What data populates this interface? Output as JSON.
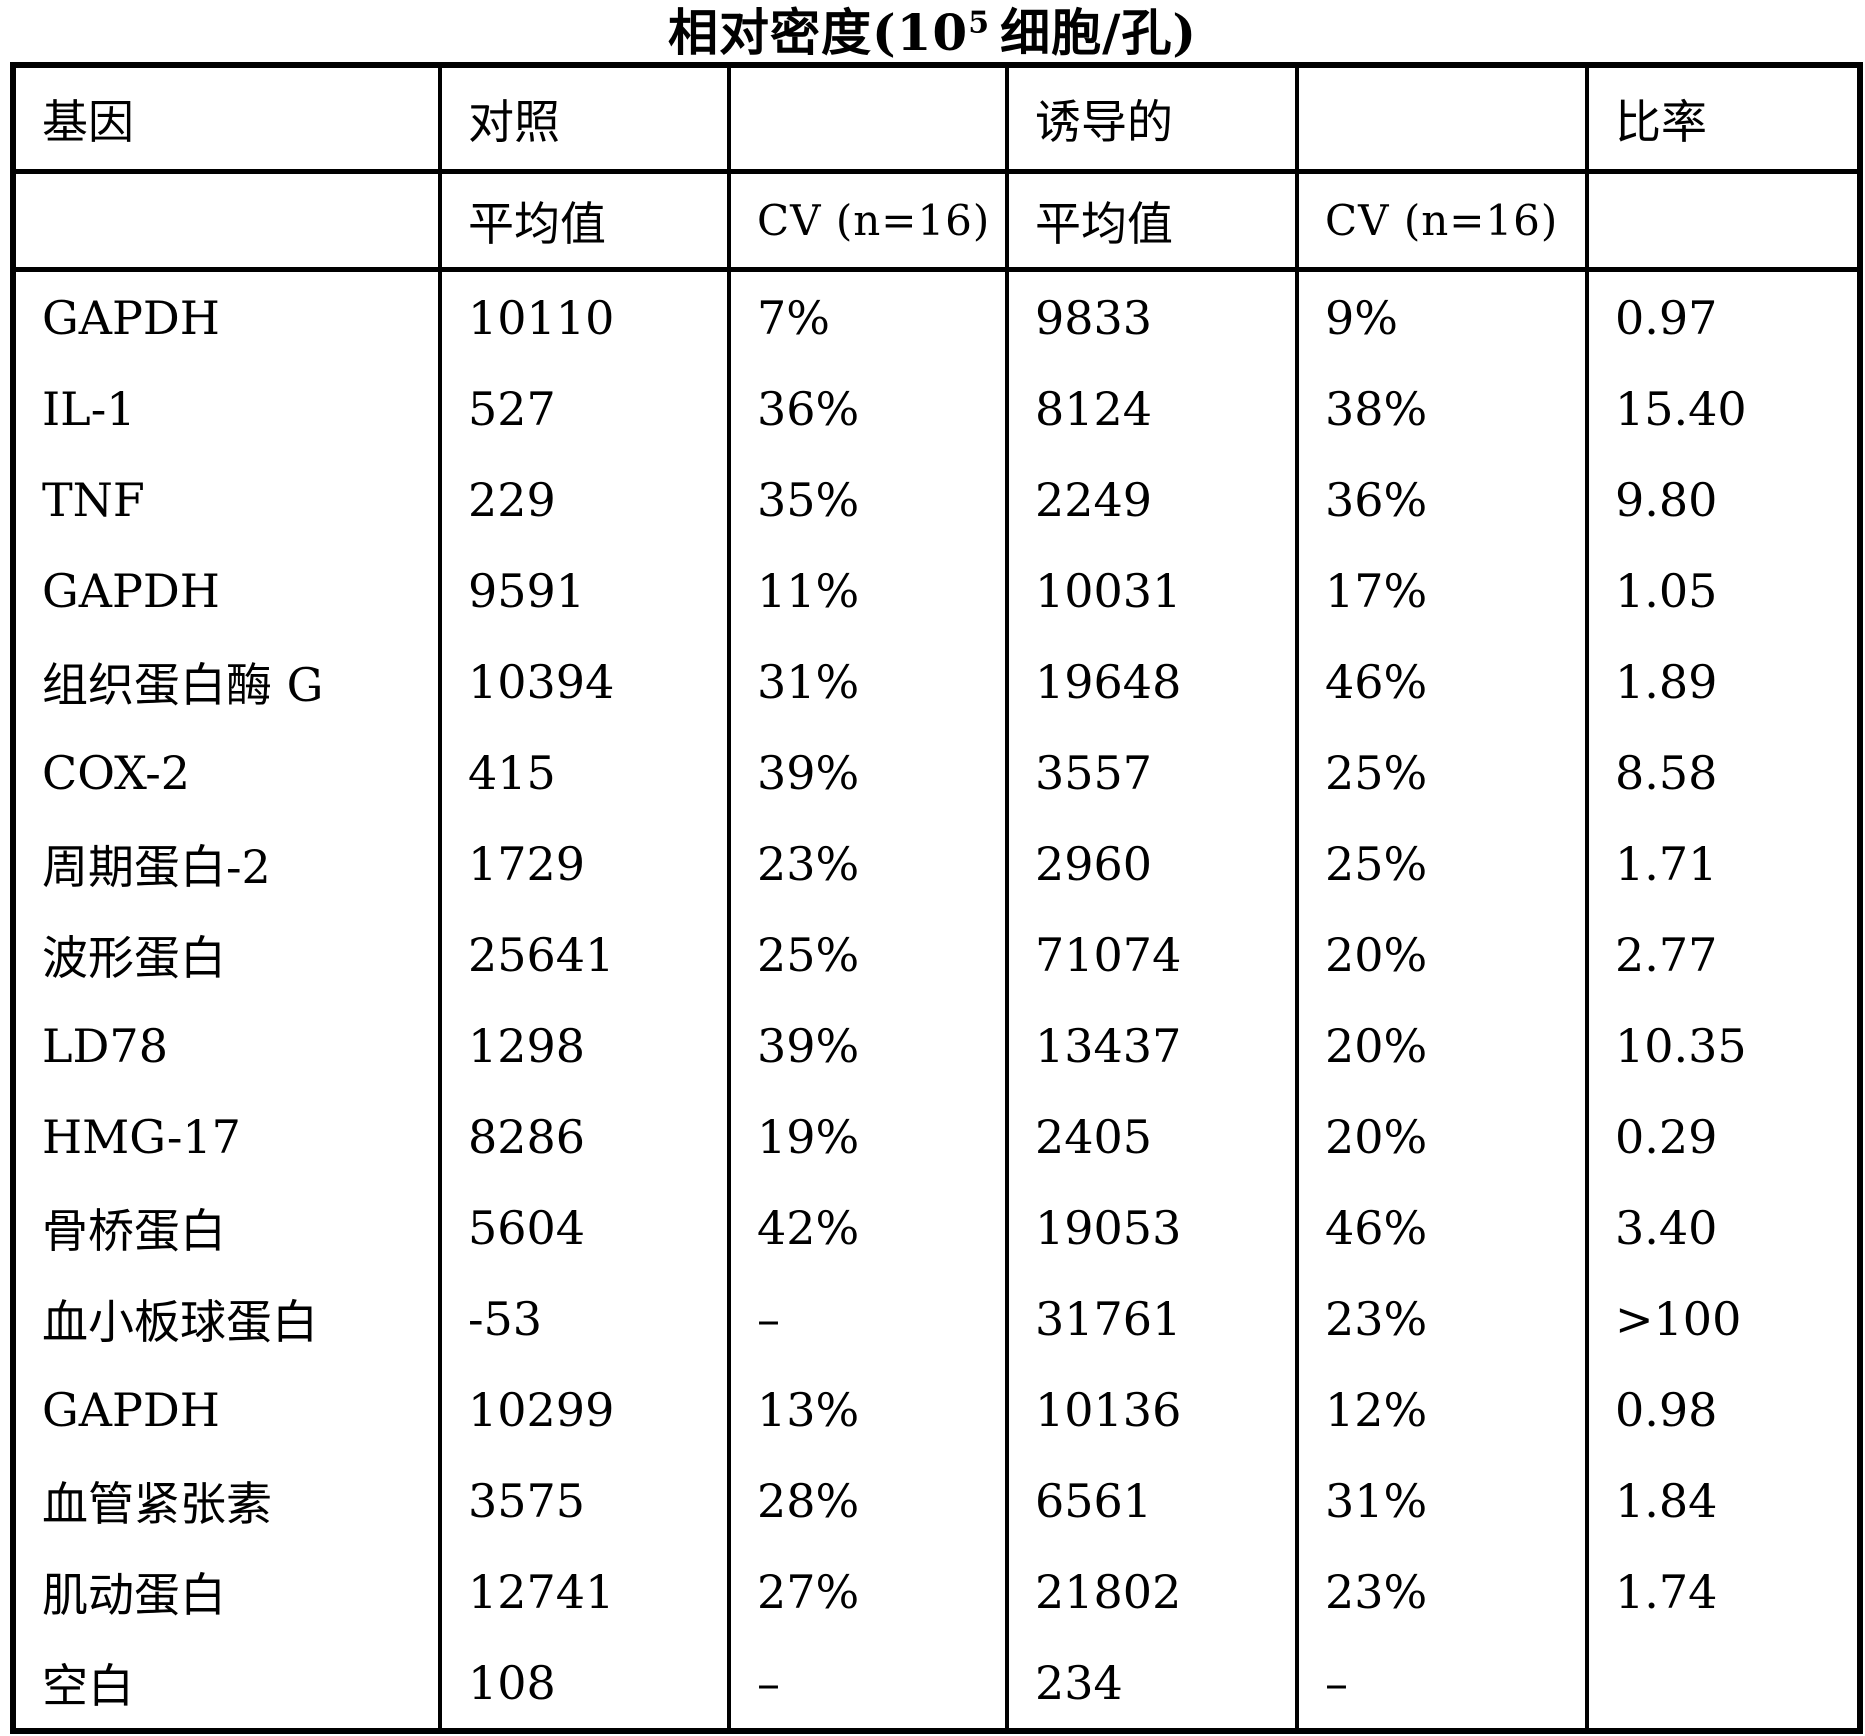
{
  "title": {
    "prefix": "相对密度(10",
    "superscript": "5",
    "suffix": "细胞/孔)"
  },
  "table": {
    "header": {
      "gene": "基因",
      "control": "对照",
      "induced": "诱导的",
      "ratio": "比率"
    },
    "subheader": {
      "control_mean": "平均值",
      "control_cv": "CV (n=16)",
      "induced_mean": "平均值",
      "induced_cv": "CV (n=16)"
    },
    "rows": [
      {
        "gene": "GAPDH",
        "control_mean": "10110",
        "control_cv": "7%",
        "induced_mean": "9833",
        "induced_cv": "9%",
        "ratio": "0.97"
      },
      {
        "gene": "IL-1",
        "control_mean": "527",
        "control_cv": "36%",
        "induced_mean": "8124",
        "induced_cv": "38%",
        "ratio": "15.40"
      },
      {
        "gene": "TNF",
        "control_mean": "229",
        "control_cv": "35%",
        "induced_mean": "2249",
        "induced_cv": "36%",
        "ratio": "9.80"
      },
      {
        "gene": "GAPDH",
        "control_mean": "9591",
        "control_cv": "11%",
        "induced_mean": "10031",
        "induced_cv": "17%",
        "ratio": "1.05"
      },
      {
        "gene": "组织蛋白酶 G",
        "control_mean": "10394",
        "control_cv": "31%",
        "induced_mean": "19648",
        "induced_cv": "46%",
        "ratio": "1.89"
      },
      {
        "gene": "COX-2",
        "control_mean": "415",
        "control_cv": "39%",
        "induced_mean": "3557",
        "induced_cv": "25%",
        "ratio": "8.58"
      },
      {
        "gene": "周期蛋白-2",
        "control_mean": "1729",
        "control_cv": "23%",
        "induced_mean": "2960",
        "induced_cv": "25%",
        "ratio": "1.71"
      },
      {
        "gene": "波形蛋白",
        "control_mean": "25641",
        "control_cv": "25%",
        "induced_mean": "71074",
        "induced_cv": "20%",
        "ratio": "2.77"
      },
      {
        "gene": "LD78",
        "control_mean": "1298",
        "control_cv": "39%",
        "induced_mean": "13437",
        "induced_cv": "20%",
        "ratio": "10.35"
      },
      {
        "gene": "HMG-17",
        "control_mean": "8286",
        "control_cv": "19%",
        "induced_mean": "2405",
        "induced_cv": "20%",
        "ratio": "0.29"
      },
      {
        "gene": "骨桥蛋白",
        "control_mean": "5604",
        "control_cv": "42%",
        "induced_mean": "19053",
        "induced_cv": "46%",
        "ratio": "3.40"
      },
      {
        "gene": "血小板球蛋白",
        "control_mean": "-53",
        "control_cv": "–",
        "induced_mean": "31761",
        "induced_cv": "23%",
        "ratio": ">100"
      },
      {
        "gene": "GAPDH",
        "control_mean": "10299",
        "control_cv": "13%",
        "induced_mean": "10136",
        "induced_cv": "12%",
        "ratio": "0.98"
      },
      {
        "gene": "血管紧张素",
        "control_mean": "3575",
        "control_cv": "28%",
        "induced_mean": "6561",
        "induced_cv": "31%",
        "ratio": "1.84"
      },
      {
        "gene": "肌动蛋白",
        "control_mean": "12741",
        "control_cv": "27%",
        "induced_mean": "21802",
        "induced_cv": "23%",
        "ratio": "1.74"
      },
      {
        "gene": "空白",
        "control_mean": "108",
        "control_cv": "–",
        "induced_mean": "234",
        "induced_cv": "–",
        "ratio": ""
      }
    ]
  }
}
